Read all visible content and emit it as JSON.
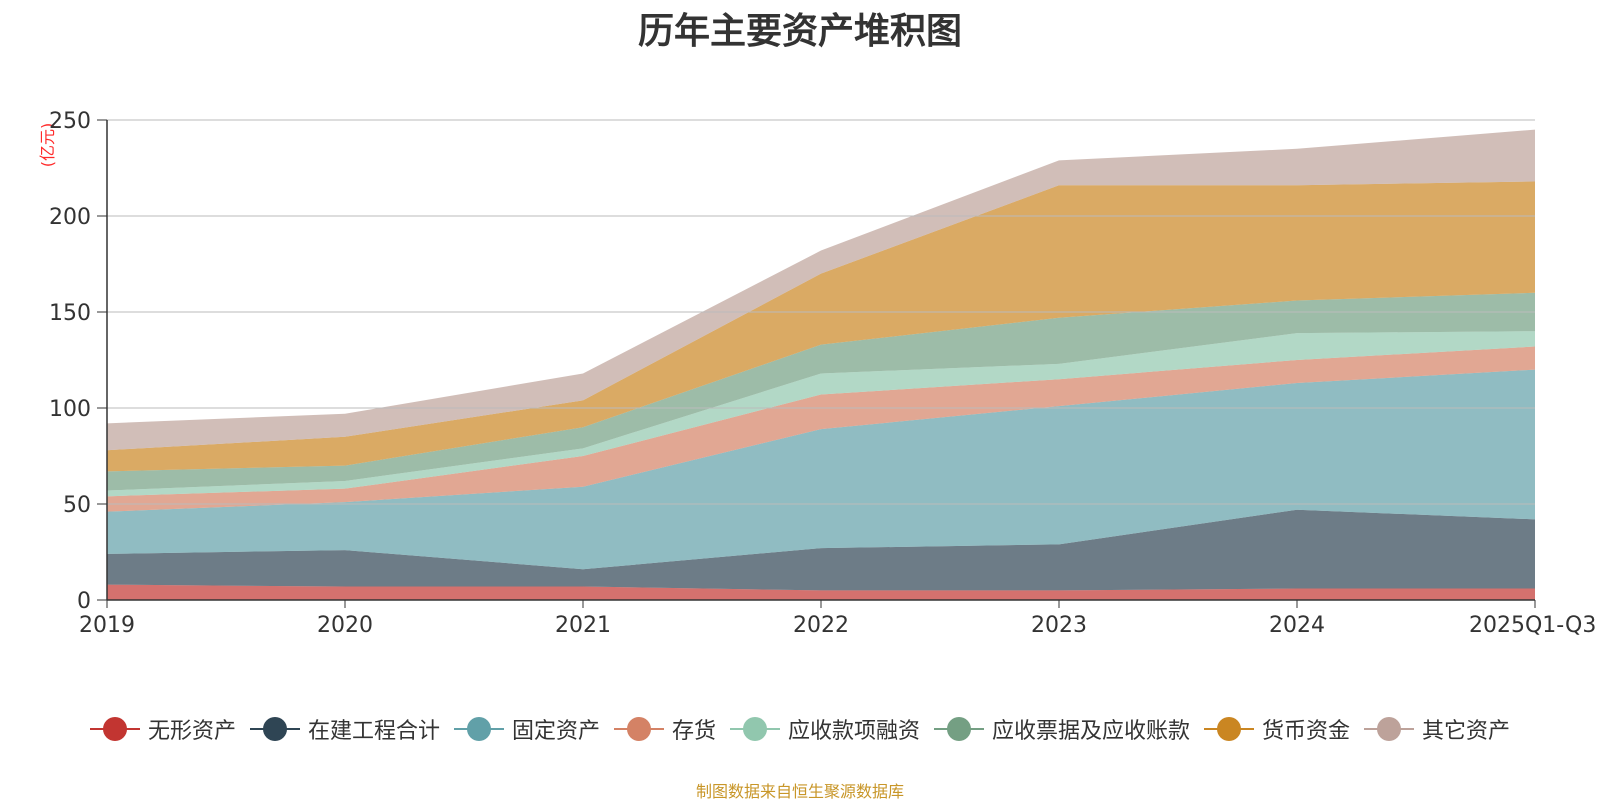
{
  "chart_data": {
    "type": "area",
    "stacked": true,
    "title": "历年主要资产堆积图",
    "ylabel": "(亿元)",
    "xlabel": "",
    "ylim": [
      0,
      250
    ],
    "yticks": [
      0,
      50,
      100,
      150,
      200,
      250
    ],
    "categories": [
      "2019",
      "2020",
      "2021",
      "2022",
      "2023",
      "2024",
      "2025Q1-Q3"
    ],
    "grid": true,
    "legend_position": "bottom",
    "series": [
      {
        "name": "无形资产",
        "color": "#c23531",
        "values": [
          8,
          7,
          7,
          5,
          5,
          6,
          6
        ]
      },
      {
        "name": "在建工程合计",
        "color": "#2f4554",
        "values": [
          16,
          19,
          9,
          22,
          24,
          41,
          36
        ]
      },
      {
        "name": "固定资产",
        "color": "#61a0a8",
        "values": [
          22,
          25,
          43,
          62,
          72,
          66,
          78
        ]
      },
      {
        "name": "存货",
        "color": "#d48265",
        "values": [
          8,
          7,
          16,
          18,
          14,
          12,
          12
        ]
      },
      {
        "name": "应收款项融资",
        "color": "#91c7ae",
        "values": [
          3,
          4,
          4,
          11,
          8,
          14,
          8
        ]
      },
      {
        "name": "应收票据及应收账款",
        "color": "#749f83",
        "values": [
          10,
          8,
          11,
          15,
          24,
          17,
          20
        ]
      },
      {
        "name": "货币资金",
        "color": "#ca8622",
        "values": [
          11,
          15,
          14,
          37,
          69,
          60,
          58
        ]
      },
      {
        "name": "其它资产",
        "color": "#bda29a",
        "values": [
          14,
          12,
          14,
          12,
          13,
          19,
          27
        ]
      }
    ]
  },
  "footer": "制图数据来自恒生聚源数据库"
}
